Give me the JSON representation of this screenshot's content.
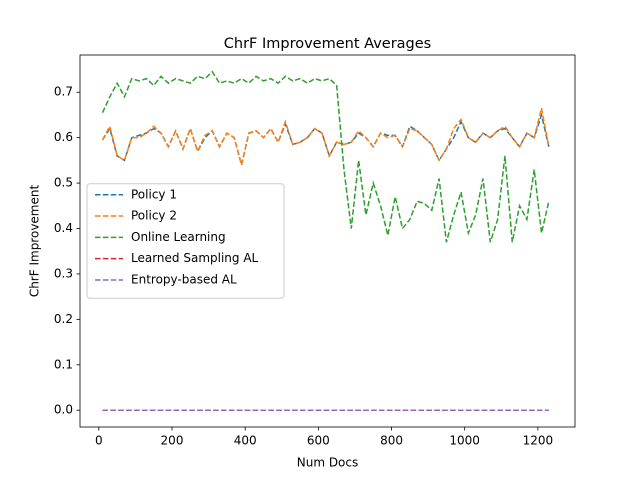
{
  "chart_data": {
    "type": "line",
    "title": "ChrF Improvement Averages",
    "x_label": "Num Docs",
    "y_label": "ChrF Improvement",
    "x": [
      10,
      30,
      50,
      70,
      90,
      110,
      130,
      150,
      170,
      190,
      210,
      230,
      250,
      270,
      290,
      310,
      330,
      350,
      370,
      390,
      410,
      430,
      450,
      470,
      490,
      510,
      530,
      550,
      570,
      590,
      610,
      630,
      650,
      670,
      690,
      710,
      730,
      750,
      770,
      790,
      810,
      830,
      850,
      870,
      890,
      910,
      930,
      950,
      970,
      990,
      1010,
      1030,
      1050,
      1070,
      1090,
      1110,
      1130,
      1150,
      1170,
      1190,
      1210,
      1230
    ],
    "series": [
      {
        "name": "Policy 1",
        "color": "#1f77b4",
        "values": [
          0.595,
          0.62,
          0.56,
          0.55,
          0.6,
          0.605,
          0.61,
          0.62,
          0.61,
          0.58,
          0.615,
          0.575,
          0.62,
          0.57,
          0.6,
          0.615,
          0.58,
          0.61,
          0.6,
          0.54,
          0.61,
          0.615,
          0.6,
          0.62,
          0.59,
          0.63,
          0.585,
          0.59,
          0.6,
          0.62,
          0.61,
          0.56,
          0.59,
          0.585,
          0.59,
          0.61,
          0.6,
          0.58,
          0.61,
          0.605,
          0.605,
          0.58,
          0.625,
          0.615,
          0.6,
          0.585,
          0.55,
          0.575,
          0.6,
          0.635,
          0.6,
          0.59,
          0.61,
          0.6,
          0.615,
          0.62,
          0.6,
          0.58,
          0.61,
          0.6,
          0.65,
          0.58
        ]
      },
      {
        "name": "Policy 2",
        "color": "#ff7f0e",
        "values": [
          0.595,
          0.625,
          0.56,
          0.55,
          0.6,
          0.6,
          0.61,
          0.625,
          0.61,
          0.58,
          0.615,
          0.575,
          0.62,
          0.57,
          0.605,
          0.615,
          0.58,
          0.61,
          0.6,
          0.54,
          0.61,
          0.615,
          0.6,
          0.62,
          0.59,
          0.635,
          0.585,
          0.59,
          0.6,
          0.62,
          0.61,
          0.56,
          0.59,
          0.585,
          0.59,
          0.615,
          0.6,
          0.58,
          0.61,
          0.6,
          0.605,
          0.58,
          0.62,
          0.615,
          0.6,
          0.585,
          0.55,
          0.575,
          0.62,
          0.64,
          0.6,
          0.59,
          0.61,
          0.6,
          0.615,
          0.625,
          0.6,
          0.58,
          0.61,
          0.6,
          0.665,
          0.58
        ]
      },
      {
        "name": "Online Learning",
        "color": "#2ca02c",
        "values": [
          0.655,
          0.69,
          0.72,
          0.69,
          0.73,
          0.725,
          0.73,
          0.715,
          0.735,
          0.72,
          0.73,
          0.725,
          0.72,
          0.735,
          0.73,
          0.745,
          0.72,
          0.725,
          0.72,
          0.73,
          0.72,
          0.735,
          0.725,
          0.73,
          0.72,
          0.735,
          0.725,
          0.73,
          0.72,
          0.73,
          0.725,
          0.73,
          0.715,
          0.53,
          0.4,
          0.55,
          0.43,
          0.5,
          0.45,
          0.385,
          0.47,
          0.4,
          0.42,
          0.46,
          0.455,
          0.44,
          0.51,
          0.37,
          0.43,
          0.48,
          0.39,
          0.43,
          0.51,
          0.37,
          0.42,
          0.56,
          0.37,
          0.45,
          0.42,
          0.53,
          0.39,
          0.46
        ]
      },
      {
        "name": "Learned Sampling AL",
        "color": "#d62728",
        "values": [
          0,
          0,
          0,
          0,
          0,
          0,
          0,
          0,
          0,
          0,
          0,
          0,
          0,
          0,
          0,
          0,
          0,
          0,
          0,
          0,
          0,
          0,
          0,
          0,
          0,
          0,
          0,
          0,
          0,
          0,
          0,
          0,
          0,
          0,
          0,
          0,
          0,
          0,
          0,
          0,
          0,
          0,
          0,
          0,
          0,
          0,
          0,
          0,
          0,
          0,
          0,
          0,
          0,
          0,
          0,
          0,
          0,
          0,
          0,
          0,
          0,
          0
        ]
      },
      {
        "name": "Entropy-based AL",
        "color": "#9467bd",
        "values": [
          0,
          0,
          0,
          0,
          0,
          0,
          0,
          0,
          0,
          0,
          0,
          0,
          0,
          0,
          0,
          0,
          0,
          0,
          0,
          0,
          0,
          0,
          0,
          0,
          0,
          0,
          0,
          0,
          0,
          0,
          0,
          0,
          0,
          0,
          0,
          0,
          0,
          0,
          0,
          0,
          0,
          0,
          0,
          0,
          0,
          0,
          0,
          0,
          0,
          0,
          0,
          0,
          0,
          0,
          0,
          0,
          0,
          0,
          0,
          0,
          0,
          0
        ]
      }
    ],
    "xlim": [
      -51.5,
      1301.5
    ],
    "xticks": [
      0,
      200,
      400,
      600,
      800,
      1000,
      1200
    ],
    "ylim": [
      -0.037,
      0.782
    ],
    "yticks": [
      {
        "value": 0,
        "label": "0.0"
      },
      0.1,
      0.2,
      0.3,
      0.4,
      0.5,
      0.6,
      0.7
    ],
    "line_style": "dashed",
    "legend": "center left"
  }
}
